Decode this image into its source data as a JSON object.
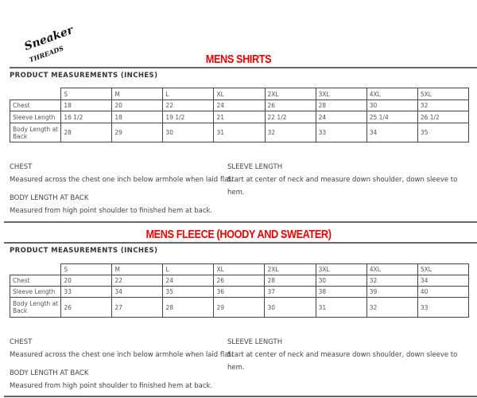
{
  "logo": "Sneaker Threads",
  "sections": [
    {
      "title": "MENS SHIRTS",
      "subtitle": "PRODUCT MEASUREMENTS (INCHES)",
      "sizes": [
        "S",
        "M",
        "L",
        "XL",
        "2XL",
        "3XL",
        "4XL",
        "5XL"
      ],
      "rows": [
        {
          "label": "Chest",
          "values": [
            "18",
            "20",
            "22",
            "24",
            "26",
            "28",
            "30",
            "32"
          ]
        },
        {
          "label": "Sleeve Length",
          "values": [
            "16 1/2",
            "18",
            "19 1/2",
            "21",
            "22 1/2",
            "24",
            "25 1/4",
            "26 1/2"
          ]
        },
        {
          "label": "Body Length at Back",
          "values": [
            "28",
            "29",
            "30",
            "31",
            "32",
            "33",
            "34",
            "35"
          ]
        }
      ],
      "chest_heading": "CHEST",
      "chest_text": "Measured across the chest one inch below armhole when laid flat.",
      "body_heading": "BODY LENGTH AT BACK",
      "body_text": "Measured from high point shoulder to finished hem at back.",
      "sleeve_heading": "SLEEVE LENGTH",
      "sleeve_text_1": "Start at center of neck and measure down shoulder, down sleeve to",
      "sleeve_text_2": "hem."
    },
    {
      "title": "MENS FLEECE (HOODY AND SWEATER)",
      "subtitle": "PRODUCT MEASUREMENTS (INCHES)",
      "sizes": [
        "S",
        "M",
        "L",
        "XL",
        "2XL",
        "3XL",
        "4XL",
        "5XL"
      ],
      "rows": [
        {
          "label": "Chest",
          "values": [
            "20",
            "22",
            "24",
            "26",
            "28",
            "30",
            "32",
            "34"
          ]
        },
        {
          "label": "Sleeve Length",
          "values": [
            "33",
            "34",
            "35",
            "36",
            "37",
            "38",
            "39",
            "40"
          ]
        },
        {
          "label": "Body Length at Back",
          "values": [
            "26",
            "27",
            "28",
            "29",
            "30",
            "31",
            "32",
            "33"
          ]
        }
      ],
      "chest_heading": "CHEST",
      "chest_text": "Measured across the chest one inch below armhole when laid flat.",
      "body_heading": "BODY LENGTH AT BACK",
      "body_text": "Measured from high point shoulder to finished hem at back.",
      "sleeve_heading": "SLEEVE LENGTH",
      "sleeve_text_1": "Start at center of neck and measure down shoulder, down sleeve to",
      "sleeve_text_2": "hem."
    }
  ]
}
